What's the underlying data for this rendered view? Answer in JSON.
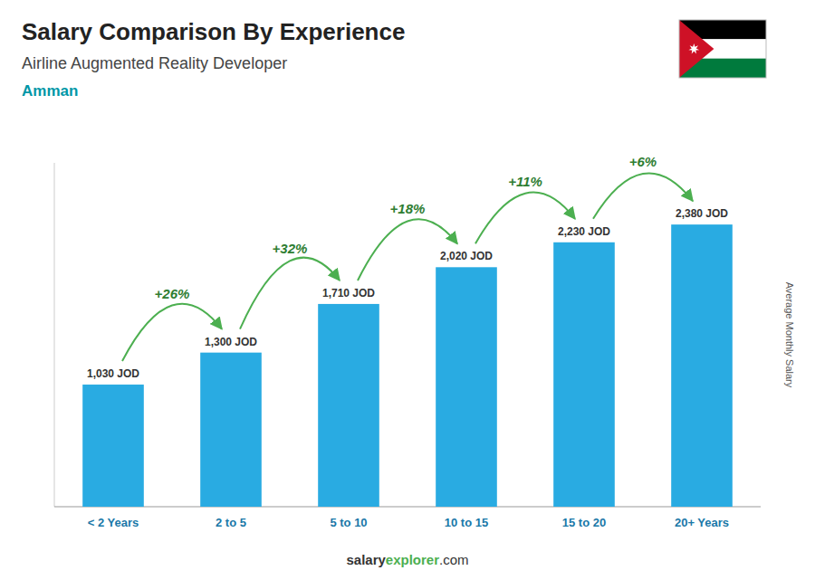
{
  "chart_data": {
    "type": "bar",
    "title": "Salary Comparison By Experience",
    "subtitle": "Airline Augmented Reality Developer",
    "city": "Amman",
    "ylabel": "Average Monthly Salary",
    "categories": [
      "< 2 Years",
      "2 to 5",
      "5 to 10",
      "10 to 15",
      "15 to 20",
      "20+ Years"
    ],
    "values": [
      1030,
      1300,
      1710,
      2020,
      2230,
      2380
    ],
    "value_labels": [
      "1,030 JOD",
      "1,300 JOD",
      "1,710 JOD",
      "2,020 JOD",
      "2,230 JOD",
      "2,380 JOD"
    ],
    "data_labels": true,
    "pct_labels": [
      "+26%",
      "+32%",
      "+18%",
      "+11%",
      "+6%"
    ],
    "footer": [
      "salary",
      "explorer",
      ".com"
    ],
    "color": "#29ABE2",
    "ylim": [
      0,
      2900
    ],
    "grid": false,
    "tick_labels": "x"
  }
}
